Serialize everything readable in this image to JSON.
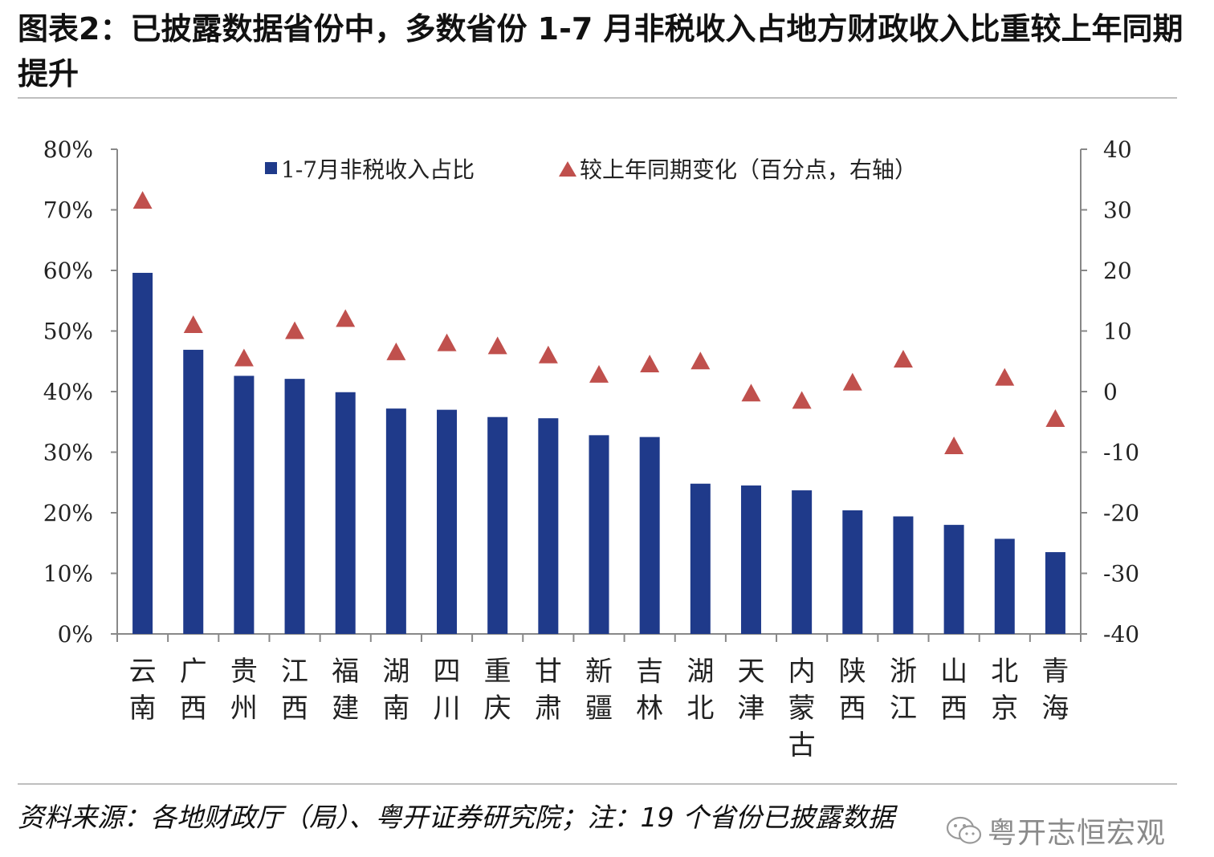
{
  "title": "图表2：已披露数据省份中，多数省份 1-7 月非税收入占地方财政收入比重较上年同期提升",
  "source": "资料来源：各地财政厅（局）、粤开证券研究院；注：19 个省份已披露数据",
  "watermark": "粤开志恒宏观",
  "colors": {
    "bar": "#1f3a8a",
    "marker": "#c0504d",
    "axis": "#888888"
  },
  "chart_data": {
    "type": "bar",
    "categories": [
      "云南",
      "广西",
      "贵州",
      "江西",
      "福建",
      "湖南",
      "四川",
      "重庆",
      "甘肃",
      "新疆",
      "吉林",
      "湖北",
      "天津",
      "内蒙古",
      "陕西",
      "浙江",
      "山西",
      "北京",
      "青海"
    ],
    "category_labels": [
      [
        "云",
        "南"
      ],
      [
        "广",
        "西"
      ],
      [
        "贵",
        "州"
      ],
      [
        "江",
        "西"
      ],
      [
        "福",
        "建"
      ],
      [
        "湖",
        "南"
      ],
      [
        "四",
        "川"
      ],
      [
        "重",
        "庆"
      ],
      [
        "甘",
        "肃"
      ],
      [
        "新",
        "疆"
      ],
      [
        "吉",
        "林"
      ],
      [
        "湖",
        "北"
      ],
      [
        "天",
        "津"
      ],
      [
        "内",
        "蒙",
        "古"
      ],
      [
        "陕",
        "西"
      ],
      [
        "浙",
        "江"
      ],
      [
        "山",
        "西"
      ],
      [
        "北",
        "京"
      ],
      [
        "青",
        "海"
      ]
    ],
    "series": [
      {
        "name": "1-7月非税收入占比",
        "type": "bar",
        "axis": "left",
        "values": [
          59.6,
          46.9,
          42.6,
          42.1,
          39.9,
          37.2,
          37.0,
          35.8,
          35.6,
          32.8,
          32.5,
          24.8,
          24.5,
          23.7,
          20.4,
          19.4,
          18.0,
          15.7,
          13.5
        ]
      },
      {
        "name": "较上年同期变化（百分点，右轴）",
        "type": "scatter",
        "marker": "triangle",
        "axis": "right",
        "values": [
          31.5,
          11.0,
          5.5,
          10.0,
          12.0,
          6.5,
          8.0,
          7.5,
          6.0,
          2.8,
          4.5,
          5.0,
          -0.3,
          -1.5,
          1.5,
          5.3,
          -9.0,
          2.3,
          -4.5
        ]
      }
    ],
    "left_axis": {
      "ylim": [
        0,
        80
      ],
      "ticks": [
        "0%",
        "10%",
        "20%",
        "30%",
        "40%",
        "50%",
        "60%",
        "70%",
        "80%"
      ]
    },
    "right_axis": {
      "ylim": [
        -40,
        40
      ],
      "ticks": [
        "-40",
        "-30",
        "-20",
        "-10",
        "0",
        "10",
        "20",
        "30",
        "40"
      ]
    },
    "legend": [
      "1-7月非税收入占比",
      "较上年同期变化（百分点，右轴）"
    ]
  }
}
